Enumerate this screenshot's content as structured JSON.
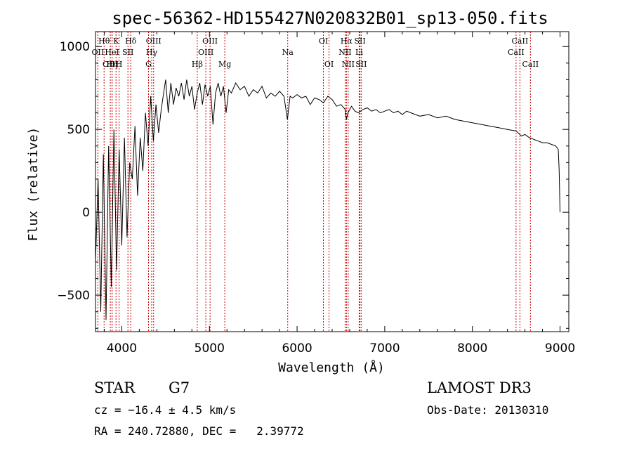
{
  "chart_data": {
    "type": "line",
    "title": "spec-56362-HD155427N020832B01_sp13-050.fits",
    "xlabel": "Wavelength (Å)",
    "ylabel": "Flux (relative)",
    "xlim": [
      3700,
      9100
    ],
    "ylim": [
      -720,
      1090
    ],
    "xticks": [
      4000,
      5000,
      6000,
      7000,
      8000,
      9000
    ],
    "yticks": [
      -500,
      0,
      500,
      1000
    ],
    "grid": false,
    "series": [
      {
        "name": "flux",
        "x": [
          3700,
          3730,
          3760,
          3790,
          3820,
          3850,
          3880,
          3910,
          3940,
          3970,
          4000,
          4030,
          4060,
          4090,
          4120,
          4150,
          4180,
          4210,
          4240,
          4270,
          4300,
          4330,
          4360,
          4390,
          4420,
          4450,
          4480,
          4500,
          4530,
          4560,
          4590,
          4620,
          4650,
          4680,
          4710,
          4740,
          4770,
          4800,
          4830,
          4860,
          4890,
          4920,
          4950,
          4980,
          5010,
          5040,
          5070,
          5100,
          5130,
          5160,
          5190,
          5220,
          5250,
          5300,
          5350,
          5400,
          5450,
          5500,
          5550,
          5600,
          5650,
          5700,
          5750,
          5800,
          5850,
          5890,
          5920,
          5950,
          6000,
          6050,
          6100,
          6150,
          6200,
          6250,
          6300,
          6350,
          6400,
          6450,
          6500,
          6550,
          6563,
          6580,
          6620,
          6660,
          6700,
          6750,
          6800,
          6850,
          6900,
          6950,
          7000,
          7050,
          7100,
          7150,
          7200,
          7250,
          7300,
          7400,
          7500,
          7600,
          7700,
          7800,
          7900,
          8000,
          8100,
          8200,
          8300,
          8400,
          8500,
          8540,
          8560,
          8600,
          8650,
          8700,
          8750,
          8800,
          8850,
          8900,
          8950,
          8980,
          8990,
          9000
        ],
        "values": [
          -300,
          200,
          -600,
          350,
          -650,
          400,
          -450,
          500,
          -350,
          380,
          -200,
          450,
          -150,
          300,
          200,
          520,
          100,
          450,
          250,
          600,
          400,
          700,
          430,
          650,
          480,
          620,
          730,
          800,
          600,
          780,
          650,
          750,
          700,
          780,
          680,
          800,
          700,
          760,
          620,
          720,
          780,
          650,
          770,
          700,
          760,
          530,
          720,
          780,
          700,
          760,
          600,
          740,
          720,
          780,
          740,
          760,
          700,
          740,
          720,
          760,
          690,
          720,
          700,
          730,
          700,
          560,
          700,
          690,
          710,
          690,
          700,
          650,
          690,
          680,
          660,
          700,
          680,
          640,
          650,
          620,
          560,
          600,
          640,
          610,
          600,
          620,
          630,
          610,
          620,
          600,
          610,
          620,
          600,
          610,
          590,
          610,
          600,
          580,
          590,
          570,
          580,
          560,
          550,
          540,
          530,
          520,
          510,
          500,
          490,
          470,
          460,
          470,
          450,
          440,
          430,
          420,
          420,
          410,
          400,
          380,
          250,
          0
        ]
      }
    ],
    "lines": [
      {
        "name": "Hθ",
        "wavelength": 3798,
        "row": 0
      },
      {
        "name": "OII",
        "wavelength": 3727,
        "row": 1
      },
      {
        "name": "OIII",
        "wavelength": 3869,
        "row": 2
      },
      {
        "name": "K",
        "wavelength": 3934,
        "row": 0
      },
      {
        "name": "Hη",
        "wavelength": 3889,
        "row": 2
      },
      {
        "name": "HeI",
        "wavelength": 3889,
        "row": 1
      },
      {
        "name": "H",
        "wavelength": 3969,
        "row": 2
      },
      {
        "name": "SII",
        "wavelength": 4070,
        "row": 1
      },
      {
        "name": "Hδ",
        "wavelength": 4102,
        "row": 0
      },
      {
        "name": "OIII",
        "wavelength": 4363,
        "row": 0
      },
      {
        "name": "Hγ",
        "wavelength": 4341,
        "row": 1
      },
      {
        "name": "G",
        "wavelength": 4305,
        "row": 2
      },
      {
        "name": "Hβ",
        "wavelength": 4861,
        "row": 2
      },
      {
        "name": "OIII",
        "wavelength": 5007,
        "row": 0
      },
      {
        "name": "OIII",
        "wavelength": 4959,
        "row": 1
      },
      {
        "name": "Mg",
        "wavelength": 5175,
        "row": 2
      },
      {
        "name": "Na",
        "wavelength": 5893,
        "row": 1
      },
      {
        "name": "OI",
        "wavelength": 6300,
        "row": 0
      },
      {
        "name": "OI",
        "wavelength": 6364,
        "row": 2
      },
      {
        "name": "Hα",
        "wavelength": 6563,
        "row": 0
      },
      {
        "name": "NII",
        "wavelength": 6548,
        "row": 1
      },
      {
        "name": "NII",
        "wavelength": 6583,
        "row": 2
      },
      {
        "name": "SII",
        "wavelength": 6717,
        "row": 0
      },
      {
        "name": "Li",
        "wavelength": 6708,
        "row": 1
      },
      {
        "name": "SII",
        "wavelength": 6731,
        "row": 2
      },
      {
        "name": "CaII",
        "wavelength": 8542,
        "row": 0
      },
      {
        "name": "CaII",
        "wavelength": 8498,
        "row": 1
      },
      {
        "name": "CaII",
        "wavelength": 8662,
        "row": 2
      }
    ],
    "line_color": "#cc0000"
  },
  "info": {
    "class": "STAR",
    "subclass": "G7",
    "survey": "LAMOST DR3",
    "cz": "cz = −16.4 ± 4.5 km/s",
    "obs_date": "Obs-Date: 20130310",
    "radec": "RA = 240.72880, DEC =   2.39772"
  }
}
